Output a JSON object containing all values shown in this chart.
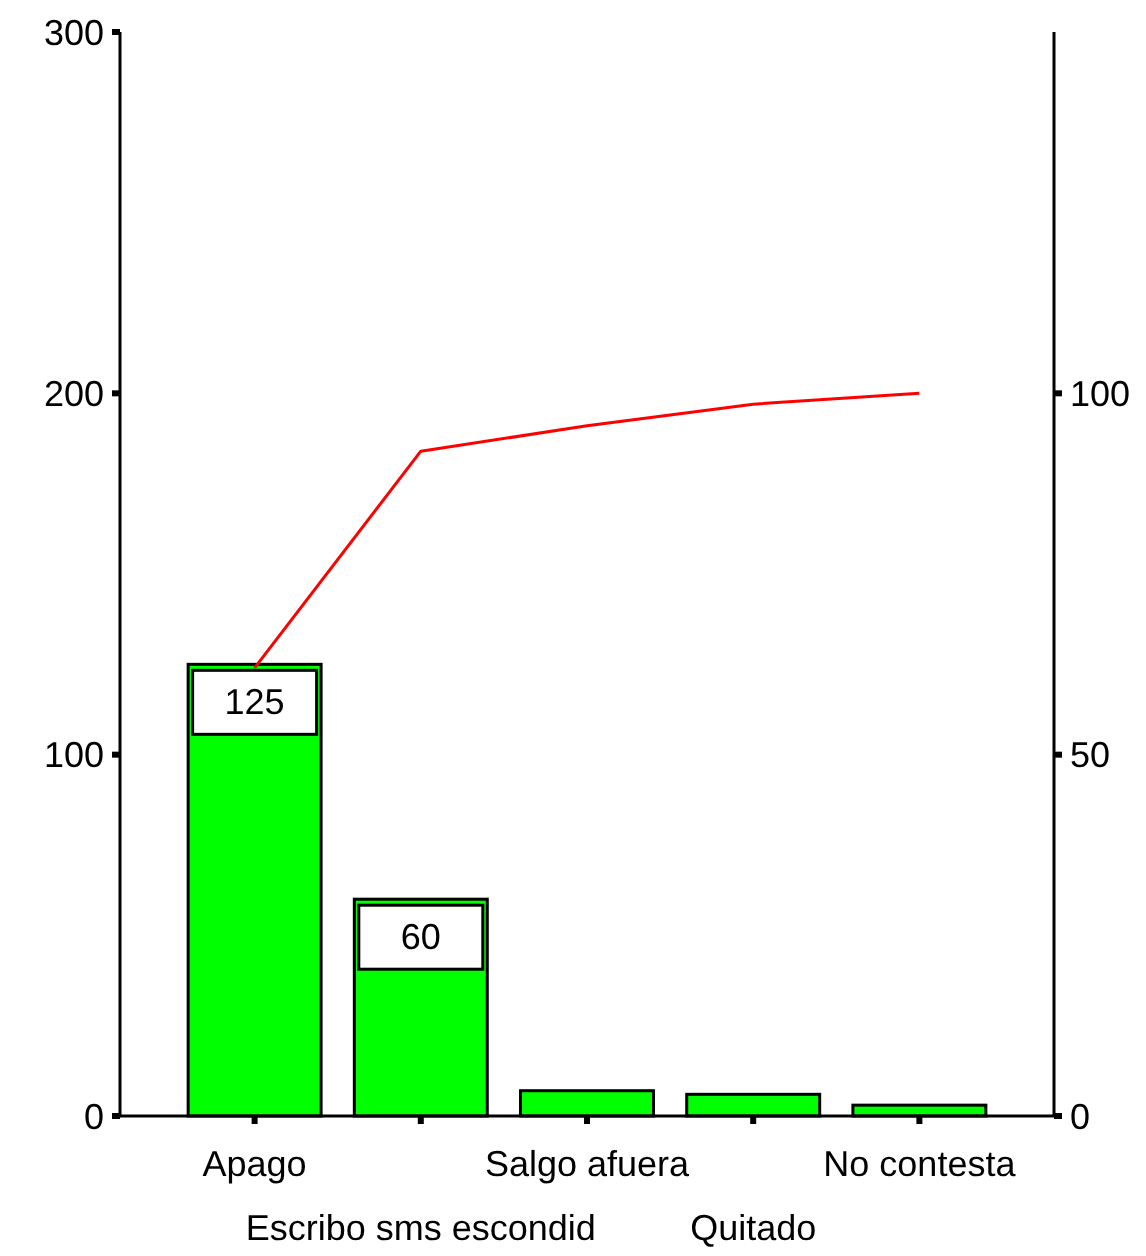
{
  "chart_data": {
    "type": "bar",
    "categories": [
      "Apago",
      "Escribo sms escondid",
      "Salgo afuera",
      "Quitado",
      "No contesta"
    ],
    "series": [
      {
        "color": "#00ff00",
        "values": [
          125,
          60,
          7,
          6,
          3
        ],
        "value_labels": [
          "125",
          "60",
          null,
          null,
          null
        ]
      },
      {
        "type": "line",
        "axis": "y2",
        "color": "#ff0000",
        "values": [
          62,
          92,
          95.5,
          98.5,
          100
        ]
      }
    ],
    "ylim": [
      0,
      300
    ],
    "yticks": [
      0,
      100,
      200,
      300
    ],
    "y2lim": [
      0,
      150
    ],
    "y2ticks": [
      0,
      50,
      100
    ]
  }
}
